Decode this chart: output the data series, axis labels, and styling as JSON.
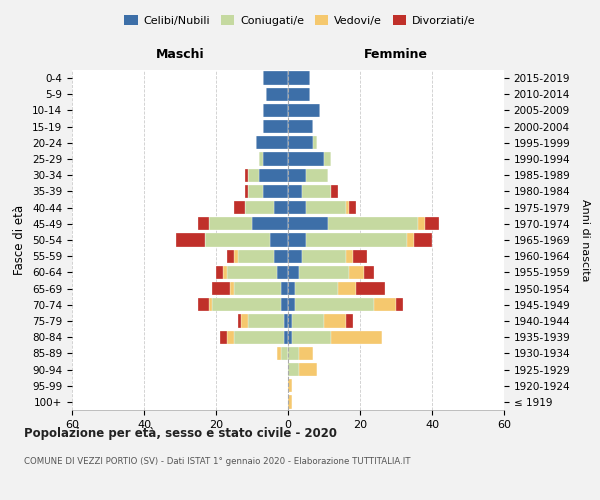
{
  "age_groups": [
    "100+",
    "95-99",
    "90-94",
    "85-89",
    "80-84",
    "75-79",
    "70-74",
    "65-69",
    "60-64",
    "55-59",
    "50-54",
    "45-49",
    "40-44",
    "35-39",
    "30-34",
    "25-29",
    "20-24",
    "15-19",
    "10-14",
    "5-9",
    "0-4"
  ],
  "birth_years": [
    "≤ 1919",
    "1920-1924",
    "1925-1929",
    "1930-1934",
    "1935-1939",
    "1940-1944",
    "1945-1949",
    "1950-1954",
    "1955-1959",
    "1960-1964",
    "1965-1969",
    "1970-1974",
    "1975-1979",
    "1980-1984",
    "1985-1989",
    "1990-1994",
    "1995-1999",
    "2000-2004",
    "2005-2009",
    "2010-2014",
    "2015-2019"
  ],
  "maschi": {
    "celibi": [
      0,
      0,
      0,
      0,
      1,
      1,
      2,
      2,
      3,
      4,
      5,
      10,
      4,
      7,
      8,
      7,
      9,
      7,
      7,
      6,
      7
    ],
    "coniugati": [
      0,
      0,
      0,
      2,
      14,
      10,
      19,
      13,
      14,
      10,
      18,
      12,
      8,
      4,
      3,
      1,
      0,
      0,
      0,
      0,
      0
    ],
    "vedovi": [
      0,
      0,
      0,
      1,
      2,
      2,
      1,
      1,
      1,
      1,
      0,
      0,
      0,
      0,
      0,
      0,
      0,
      0,
      0,
      0,
      0
    ],
    "divorziati": [
      0,
      0,
      0,
      0,
      2,
      1,
      3,
      5,
      2,
      2,
      8,
      3,
      3,
      1,
      1,
      0,
      0,
      0,
      0,
      0,
      0
    ]
  },
  "femmine": {
    "nubili": [
      0,
      0,
      0,
      0,
      1,
      1,
      2,
      2,
      3,
      4,
      5,
      11,
      5,
      4,
      5,
      10,
      7,
      7,
      9,
      6,
      6
    ],
    "coniugate": [
      0,
      0,
      3,
      3,
      11,
      9,
      22,
      12,
      14,
      12,
      28,
      25,
      11,
      8,
      6,
      2,
      1,
      0,
      0,
      0,
      0
    ],
    "vedove": [
      1,
      1,
      5,
      4,
      14,
      6,
      6,
      5,
      4,
      2,
      2,
      2,
      1,
      0,
      0,
      0,
      0,
      0,
      0,
      0,
      0
    ],
    "divorziate": [
      0,
      0,
      0,
      0,
      0,
      2,
      2,
      8,
      3,
      4,
      5,
      4,
      2,
      2,
      0,
      0,
      0,
      0,
      0,
      0,
      0
    ]
  },
  "colors": {
    "celibi": "#3d6fa8",
    "coniugati": "#c5d9a0",
    "vedovi": "#f5c86e",
    "divorziati": "#c0302a"
  },
  "legend_labels": [
    "Celibi/Nubili",
    "Coniugati/e",
    "Vedovi/e",
    "Divorziati/e"
  ],
  "title": "Popolazione per età, sesso e stato civile - 2020",
  "subtitle": "COMUNE DI VEZZI PORTIO (SV) - Dati ISTAT 1° gennaio 2020 - Elaborazione TUTTITALIA.IT",
  "label_maschi": "Maschi",
  "label_femmine": "Femmine",
  "ylabel_left": "Fasce di età",
  "ylabel_right": "Anni di nascita",
  "xlim": 60,
  "bg_color": "#f2f2f2",
  "plot_bg": "#ffffff"
}
